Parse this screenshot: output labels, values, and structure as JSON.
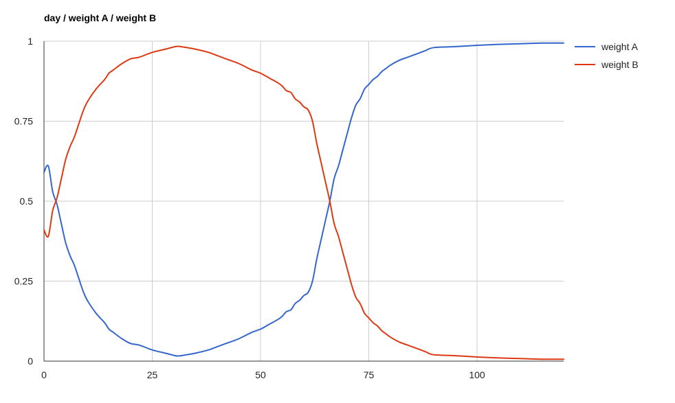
{
  "chart_data": {
    "type": "line",
    "title": "day / weight A / weight B",
    "xlabel": "",
    "ylabel": "",
    "xlim": [
      0,
      120
    ],
    "ylim": [
      0,
      1
    ],
    "grid": true,
    "legend": "right",
    "x_ticks": [
      0,
      25,
      50,
      75,
      100
    ],
    "y_ticks": [
      0,
      0.25,
      0.5,
      0.75,
      1
    ],
    "x_tick_labels": [
      "0",
      "25",
      "50",
      "75",
      "100"
    ],
    "y_tick_labels": [
      "0",
      "0.25",
      "0.5",
      "0.75",
      "1"
    ],
    "series": [
      {
        "name": "weight A",
        "color": "#3366cc",
        "x": [
          0,
          1,
          2,
          3,
          4,
          5,
          6,
          7,
          8,
          9,
          10,
          12,
          14,
          15,
          16,
          18,
          20,
          22,
          25,
          28,
          30,
          31,
          33,
          35,
          38,
          40,
          42,
          45,
          48,
          50,
          52,
          54,
          55,
          56,
          57,
          58,
          59,
          60,
          61,
          62,
          63,
          64,
          65,
          66,
          67,
          68,
          69,
          70,
          71,
          72,
          73,
          74,
          75,
          76,
          77,
          78,
          79,
          80,
          82,
          84,
          86,
          88,
          90,
          95,
          100,
          105,
          110,
          115,
          120
        ],
        "values": [
          0.59,
          0.61,
          0.53,
          0.49,
          0.43,
          0.37,
          0.33,
          0.3,
          0.26,
          0.22,
          0.19,
          0.15,
          0.12,
          0.1,
          0.09,
          0.07,
          0.055,
          0.05,
          0.035,
          0.025,
          0.018,
          0.016,
          0.02,
          0.025,
          0.035,
          0.045,
          0.055,
          0.07,
          0.09,
          0.1,
          0.115,
          0.13,
          0.14,
          0.155,
          0.16,
          0.18,
          0.19,
          0.205,
          0.215,
          0.25,
          0.32,
          0.38,
          0.44,
          0.5,
          0.57,
          0.61,
          0.66,
          0.71,
          0.76,
          0.8,
          0.82,
          0.85,
          0.865,
          0.88,
          0.89,
          0.905,
          0.915,
          0.925,
          0.94,
          0.95,
          0.96,
          0.97,
          0.98,
          0.983,
          0.987,
          0.99,
          0.992,
          0.994,
          0.994
        ]
      },
      {
        "name": "weight B",
        "color": "#dc3912",
        "x": [
          0,
          1,
          2,
          3,
          4,
          5,
          6,
          7,
          8,
          9,
          10,
          12,
          14,
          15,
          16,
          18,
          20,
          22,
          25,
          28,
          30,
          31,
          33,
          35,
          38,
          40,
          42,
          45,
          48,
          50,
          52,
          54,
          55,
          56,
          57,
          58,
          59,
          60,
          61,
          62,
          63,
          64,
          65,
          66,
          67,
          68,
          69,
          70,
          71,
          72,
          73,
          74,
          75,
          76,
          77,
          78,
          79,
          80,
          82,
          84,
          86,
          88,
          90,
          95,
          100,
          105,
          110,
          115,
          120
        ],
        "values": [
          0.41,
          0.39,
          0.47,
          0.51,
          0.57,
          0.63,
          0.67,
          0.7,
          0.74,
          0.78,
          0.81,
          0.85,
          0.88,
          0.9,
          0.91,
          0.93,
          0.945,
          0.95,
          0.965,
          0.975,
          0.982,
          0.984,
          0.98,
          0.975,
          0.965,
          0.955,
          0.945,
          0.93,
          0.91,
          0.9,
          0.885,
          0.87,
          0.86,
          0.845,
          0.84,
          0.82,
          0.81,
          0.795,
          0.785,
          0.75,
          0.68,
          0.62,
          0.56,
          0.5,
          0.43,
          0.39,
          0.34,
          0.29,
          0.24,
          0.2,
          0.18,
          0.15,
          0.135,
          0.12,
          0.11,
          0.095,
          0.085,
          0.075,
          0.06,
          0.05,
          0.04,
          0.03,
          0.02,
          0.017,
          0.013,
          0.01,
          0.008,
          0.006,
          0.006
        ]
      }
    ]
  }
}
